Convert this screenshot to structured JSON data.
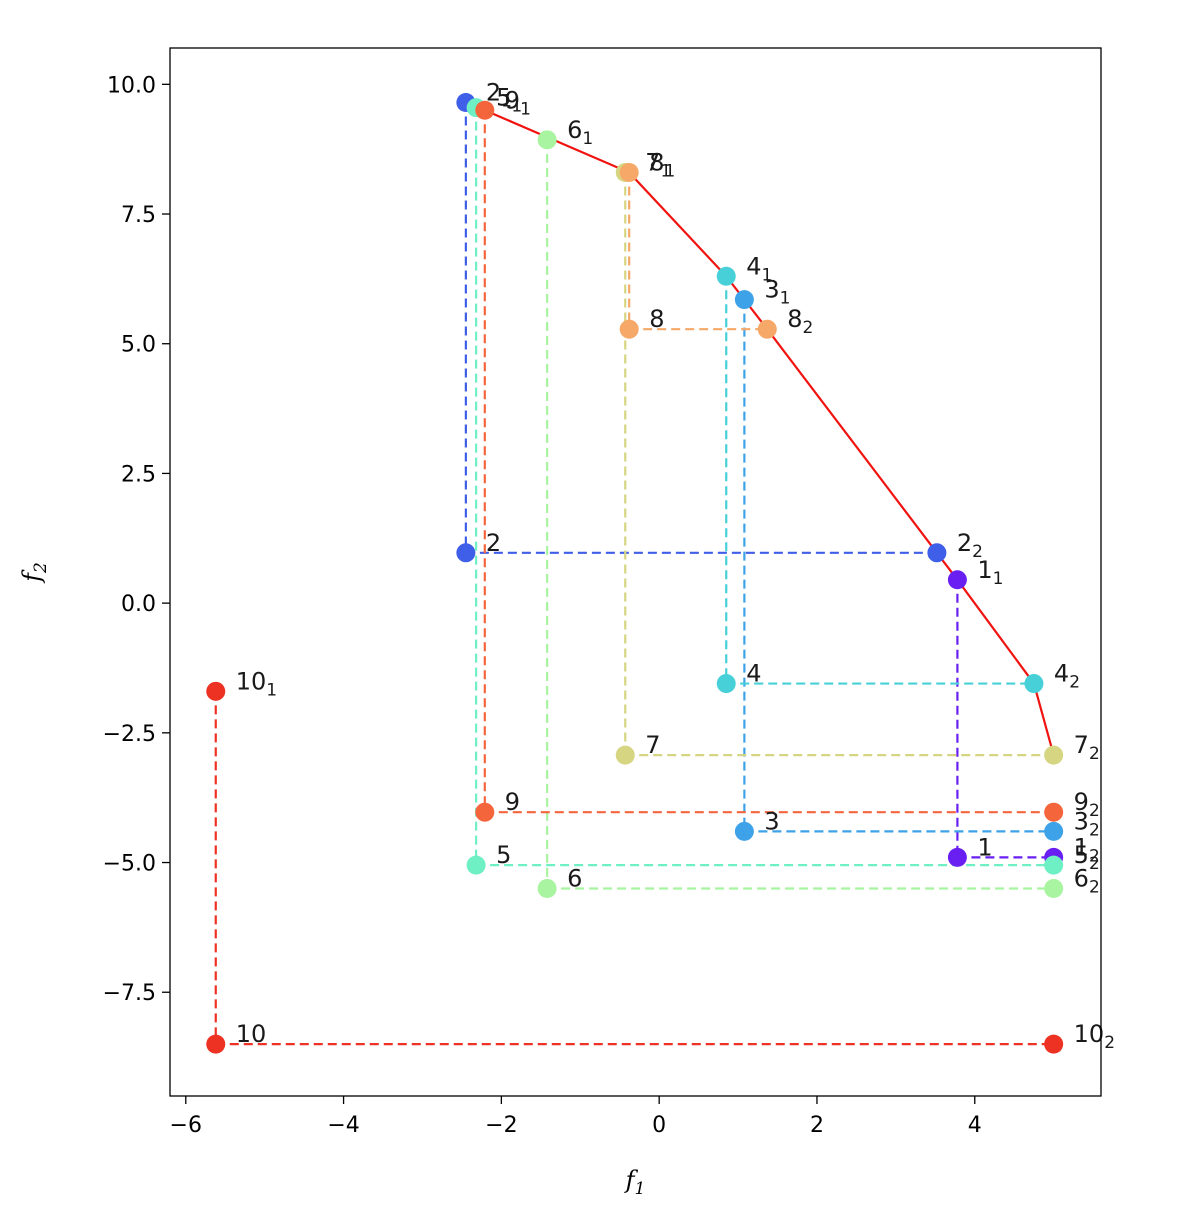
{
  "chart_data": {
    "type": "scatter",
    "title": "",
    "xlabel": "f",
    "xlabel_sub": "1",
    "ylabel": "f",
    "ylabel_sub": "2",
    "xlim": [
      -6.2,
      5.6
    ],
    "ylim": [
      -9.5,
      10.7
    ],
    "xticks": [
      -6,
      -4,
      -2,
      0,
      2,
      4
    ],
    "xtick_labels": [
      "−6",
      "−4",
      "−2",
      "0",
      "2",
      "4"
    ],
    "yticks": [
      -7.5,
      -5.0,
      -2.5,
      0.0,
      2.5,
      5.0,
      7.5,
      10.0
    ],
    "ytick_labels": [
      "−7.5",
      "−5.0",
      "−2.5",
      "0.0",
      "2.5",
      "5.0",
      "7.5",
      "10.0"
    ],
    "grid": false,
    "points": [
      {
        "id": "1",
        "color": "#6a1ff2",
        "base": [
          3.78,
          -4.9
        ],
        "p1": [
          3.78,
          0.45
        ],
        "p2": [
          5.0,
          -4.9
        ]
      },
      {
        "id": "2",
        "color": "#3f5fe9",
        "base": [
          -2.45,
          0.97
        ],
        "p1": [
          -2.45,
          9.65
        ],
        "p2": [
          3.52,
          0.97
        ]
      },
      {
        "id": "3",
        "color": "#3ea2e8",
        "base": [
          1.08,
          -4.4
        ],
        "p1": [
          1.08,
          5.85
        ],
        "p2": [
          5.0,
          -4.4
        ]
      },
      {
        "id": "4",
        "color": "#47d0d7",
        "base": [
          0.85,
          -1.55
        ],
        "p1": [
          0.85,
          6.3
        ],
        "p2": [
          4.75,
          -1.55
        ]
      },
      {
        "id": "5",
        "color": "#6ff0c4",
        "base": [
          -2.32,
          -5.05
        ],
        "p1": [
          -2.32,
          9.55
        ],
        "p2": [
          5.0,
          -5.05
        ]
      },
      {
        "id": "6",
        "color": "#a8f4a0",
        "base": [
          -1.42,
          -5.5
        ],
        "p1": [
          -1.42,
          8.93
        ],
        "p2": [
          5.0,
          -5.5
        ]
      },
      {
        "id": "7",
        "color": "#d6d582",
        "base": [
          -0.43,
          -2.93
        ],
        "p1": [
          -0.43,
          8.3
        ],
        "p2": [
          5.0,
          -2.93
        ]
      },
      {
        "id": "8",
        "color": "#f6a868",
        "base": [
          -0.38,
          5.28
        ],
        "p1": [
          -0.38,
          8.3
        ],
        "p2": [
          1.37,
          5.28
        ]
      },
      {
        "id": "9",
        "color": "#f5653c",
        "base": [
          -2.21,
          -4.03
        ],
        "p1": [
          -2.21,
          9.5
        ],
        "p2": [
          5.0,
          -4.03
        ]
      },
      {
        "id": "10",
        "color": "#ed3122",
        "base": [
          -5.62,
          -8.5
        ],
        "p1": [
          -5.62,
          -1.7
        ],
        "p2": [
          5.0,
          -8.5
        ]
      }
    ],
    "front_line": {
      "color": "#f0130f",
      "points": [
        [
          -2.45,
          9.65
        ],
        [
          -2.21,
          9.5
        ],
        [
          -0.38,
          8.3
        ],
        [
          0.85,
          6.3
        ],
        [
          1.08,
          5.85
        ],
        [
          1.37,
          5.28
        ],
        [
          3.52,
          0.97
        ],
        [
          3.78,
          0.45
        ],
        [
          4.75,
          -1.55
        ],
        [
          5.0,
          -2.93
        ]
      ]
    }
  }
}
